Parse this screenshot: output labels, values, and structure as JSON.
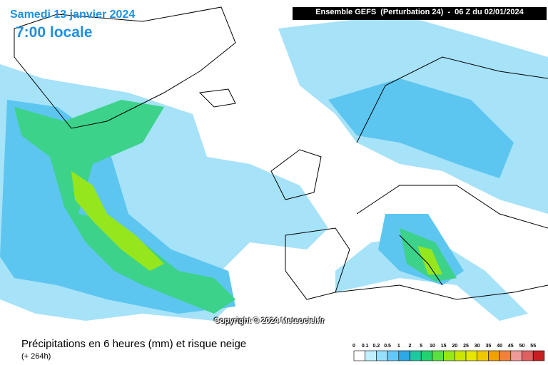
{
  "header": {
    "date": "Samedi 13 janvier 2024",
    "time": "7:00 locale",
    "run": "Ensemble GEFS  (Perturbation 24)  -  06 Z du 02/01/2024"
  },
  "copyright": "Copyright © 2024 Meteociel.fr",
  "caption": {
    "title": "Précipitations en 6 heures (mm) et risque neige",
    "subtitle": "(+ 264h)"
  },
  "legend": {
    "labels": [
      0,
      0.1,
      0.2,
      0.5,
      1,
      2,
      5,
      10,
      15,
      20,
      25,
      30,
      35,
      40,
      45,
      50,
      55
    ],
    "colors": [
      "#ffffff",
      "#c0f0ff",
      "#96e0ff",
      "#64c8f5",
      "#2ea8e6",
      "#20c8a0",
      "#22d270",
      "#5ae040",
      "#96e61e",
      "#c8e600",
      "#e6e600",
      "#f0c800",
      "#f0a000",
      "#f08040",
      "#f09a9a",
      "#e06060",
      "#c82020"
    ]
  }
}
